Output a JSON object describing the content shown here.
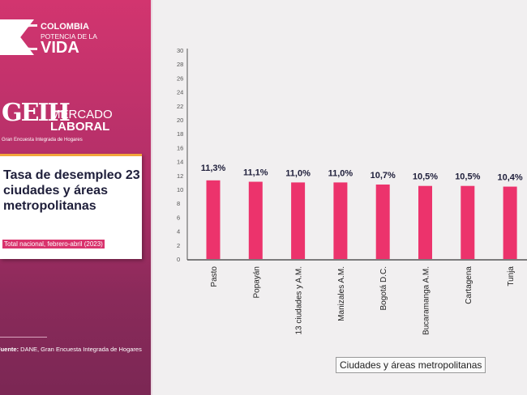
{
  "branding": {
    "line1": "COLOMBIA",
    "line2": "POTENCIA DE LA",
    "line3": "VIDA",
    "geih": "GEIH",
    "mercado": "MERCADO",
    "laboral": "LABORAL",
    "encuesta": "Gran Encuesta Integrada de Hogares"
  },
  "card": {
    "title": "Tasa de desempleo 23 ciudades y áreas metropolitanas",
    "subtitle": "Total nacional, febrero-abril (2023)"
  },
  "source": {
    "label": "Fuente:",
    "text": " DANE, Gran Encuesta Integrada de Hogares"
  },
  "colors": {
    "bar": "#ec336c",
    "panel": "#c2306a"
  },
  "chart_data": {
    "type": "bar",
    "categories": [
      "Pasto",
      "Popayán",
      "13 ciudades y A.M.",
      "Manizales A.M.",
      "Bogotá D.C.",
      "Bucaramanga A.M.",
      "Cartagena",
      "Tunja"
    ],
    "values": [
      11.3,
      11.1,
      11.0,
      11.0,
      10.7,
      10.5,
      10.5,
      10.4
    ],
    "data_labels": [
      "11,3%",
      "11,1%",
      "11,0%",
      "11,0%",
      "10,7%",
      "10,5%",
      "10,5%",
      "10,4%"
    ],
    "xlabel": "Ciudades y áreas metropolitanas",
    "ylabel": "",
    "ylim": [
      0,
      30
    ],
    "yticks": [
      0,
      2,
      4,
      6,
      8,
      10,
      12,
      14,
      16,
      18,
      20,
      22,
      24,
      26,
      28,
      30
    ],
    "grid": false
  }
}
